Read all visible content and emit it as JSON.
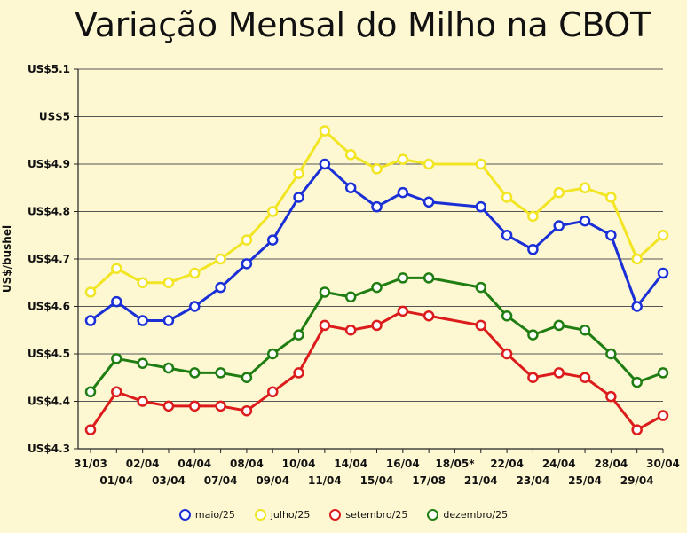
{
  "chart_data": {
    "type": "line",
    "title": "Variação Mensal do Milho na CBOT",
    "xlabel": "",
    "ylabel": "US$/bushel",
    "ylim": [
      4.3,
      5.1
    ],
    "yticks": [
      4.3,
      4.4,
      4.5,
      4.6,
      4.7,
      4.8,
      4.9,
      5.0,
      5.1
    ],
    "ytick_labels": [
      "US$4.3",
      "US$4.4",
      "US$4.5",
      "US$4.6",
      "US$4.7",
      "US$4.8",
      "US$4.9",
      "US$5",
      "US$5.1"
    ],
    "grid": true,
    "legend_position": "bottom",
    "categories": [
      "31/03",
      "01/04",
      "02/04",
      "03/04",
      "04/04",
      "07/04",
      "08/04",
      "09/04",
      "10/04",
      "11/04",
      "14/04",
      "15/04",
      "16/04",
      "17/08",
      "18/05*",
      "21/04",
      "22/04",
      "23/04",
      "24/04",
      "25/04",
      "28/04",
      "29/04",
      "30/04"
    ],
    "series": [
      {
        "name": "maio/25",
        "color": "#1a2fd6",
        "values": [
          4.57,
          4.61,
          4.57,
          4.57,
          4.6,
          4.64,
          4.69,
          4.74,
          4.83,
          4.9,
          4.85,
          4.81,
          4.84,
          4.82,
          null,
          4.81,
          4.75,
          4.72,
          4.77,
          4.78,
          4.75,
          4.6,
          4.67
        ]
      },
      {
        "name": "julho/25",
        "color": "#f2e524",
        "values": [
          4.63,
          4.68,
          4.65,
          4.65,
          4.67,
          4.7,
          4.74,
          4.8,
          4.88,
          4.97,
          4.92,
          4.89,
          4.91,
          4.9,
          null,
          4.9,
          4.83,
          4.79,
          4.84,
          4.85,
          4.83,
          4.7,
          4.75
        ]
      },
      {
        "name": "setembro/25",
        "color": "#dc1c1c",
        "values": [
          4.34,
          4.42,
          4.4,
          4.39,
          4.39,
          4.39,
          4.38,
          4.42,
          4.46,
          4.56,
          4.55,
          4.56,
          4.59,
          4.58,
          null,
          4.56,
          4.5,
          4.45,
          4.46,
          4.45,
          4.41,
          4.34,
          4.37
        ]
      },
      {
        "name": "dezembro/25",
        "color": "#1f7d12",
        "values": [
          4.42,
          4.49,
          4.48,
          4.47,
          4.46,
          4.46,
          4.45,
          4.5,
          4.54,
          4.63,
          4.62,
          4.64,
          4.66,
          4.66,
          null,
          4.64,
          4.58,
          4.54,
          4.56,
          4.55,
          4.5,
          4.44,
          4.46
        ]
      }
    ]
  }
}
